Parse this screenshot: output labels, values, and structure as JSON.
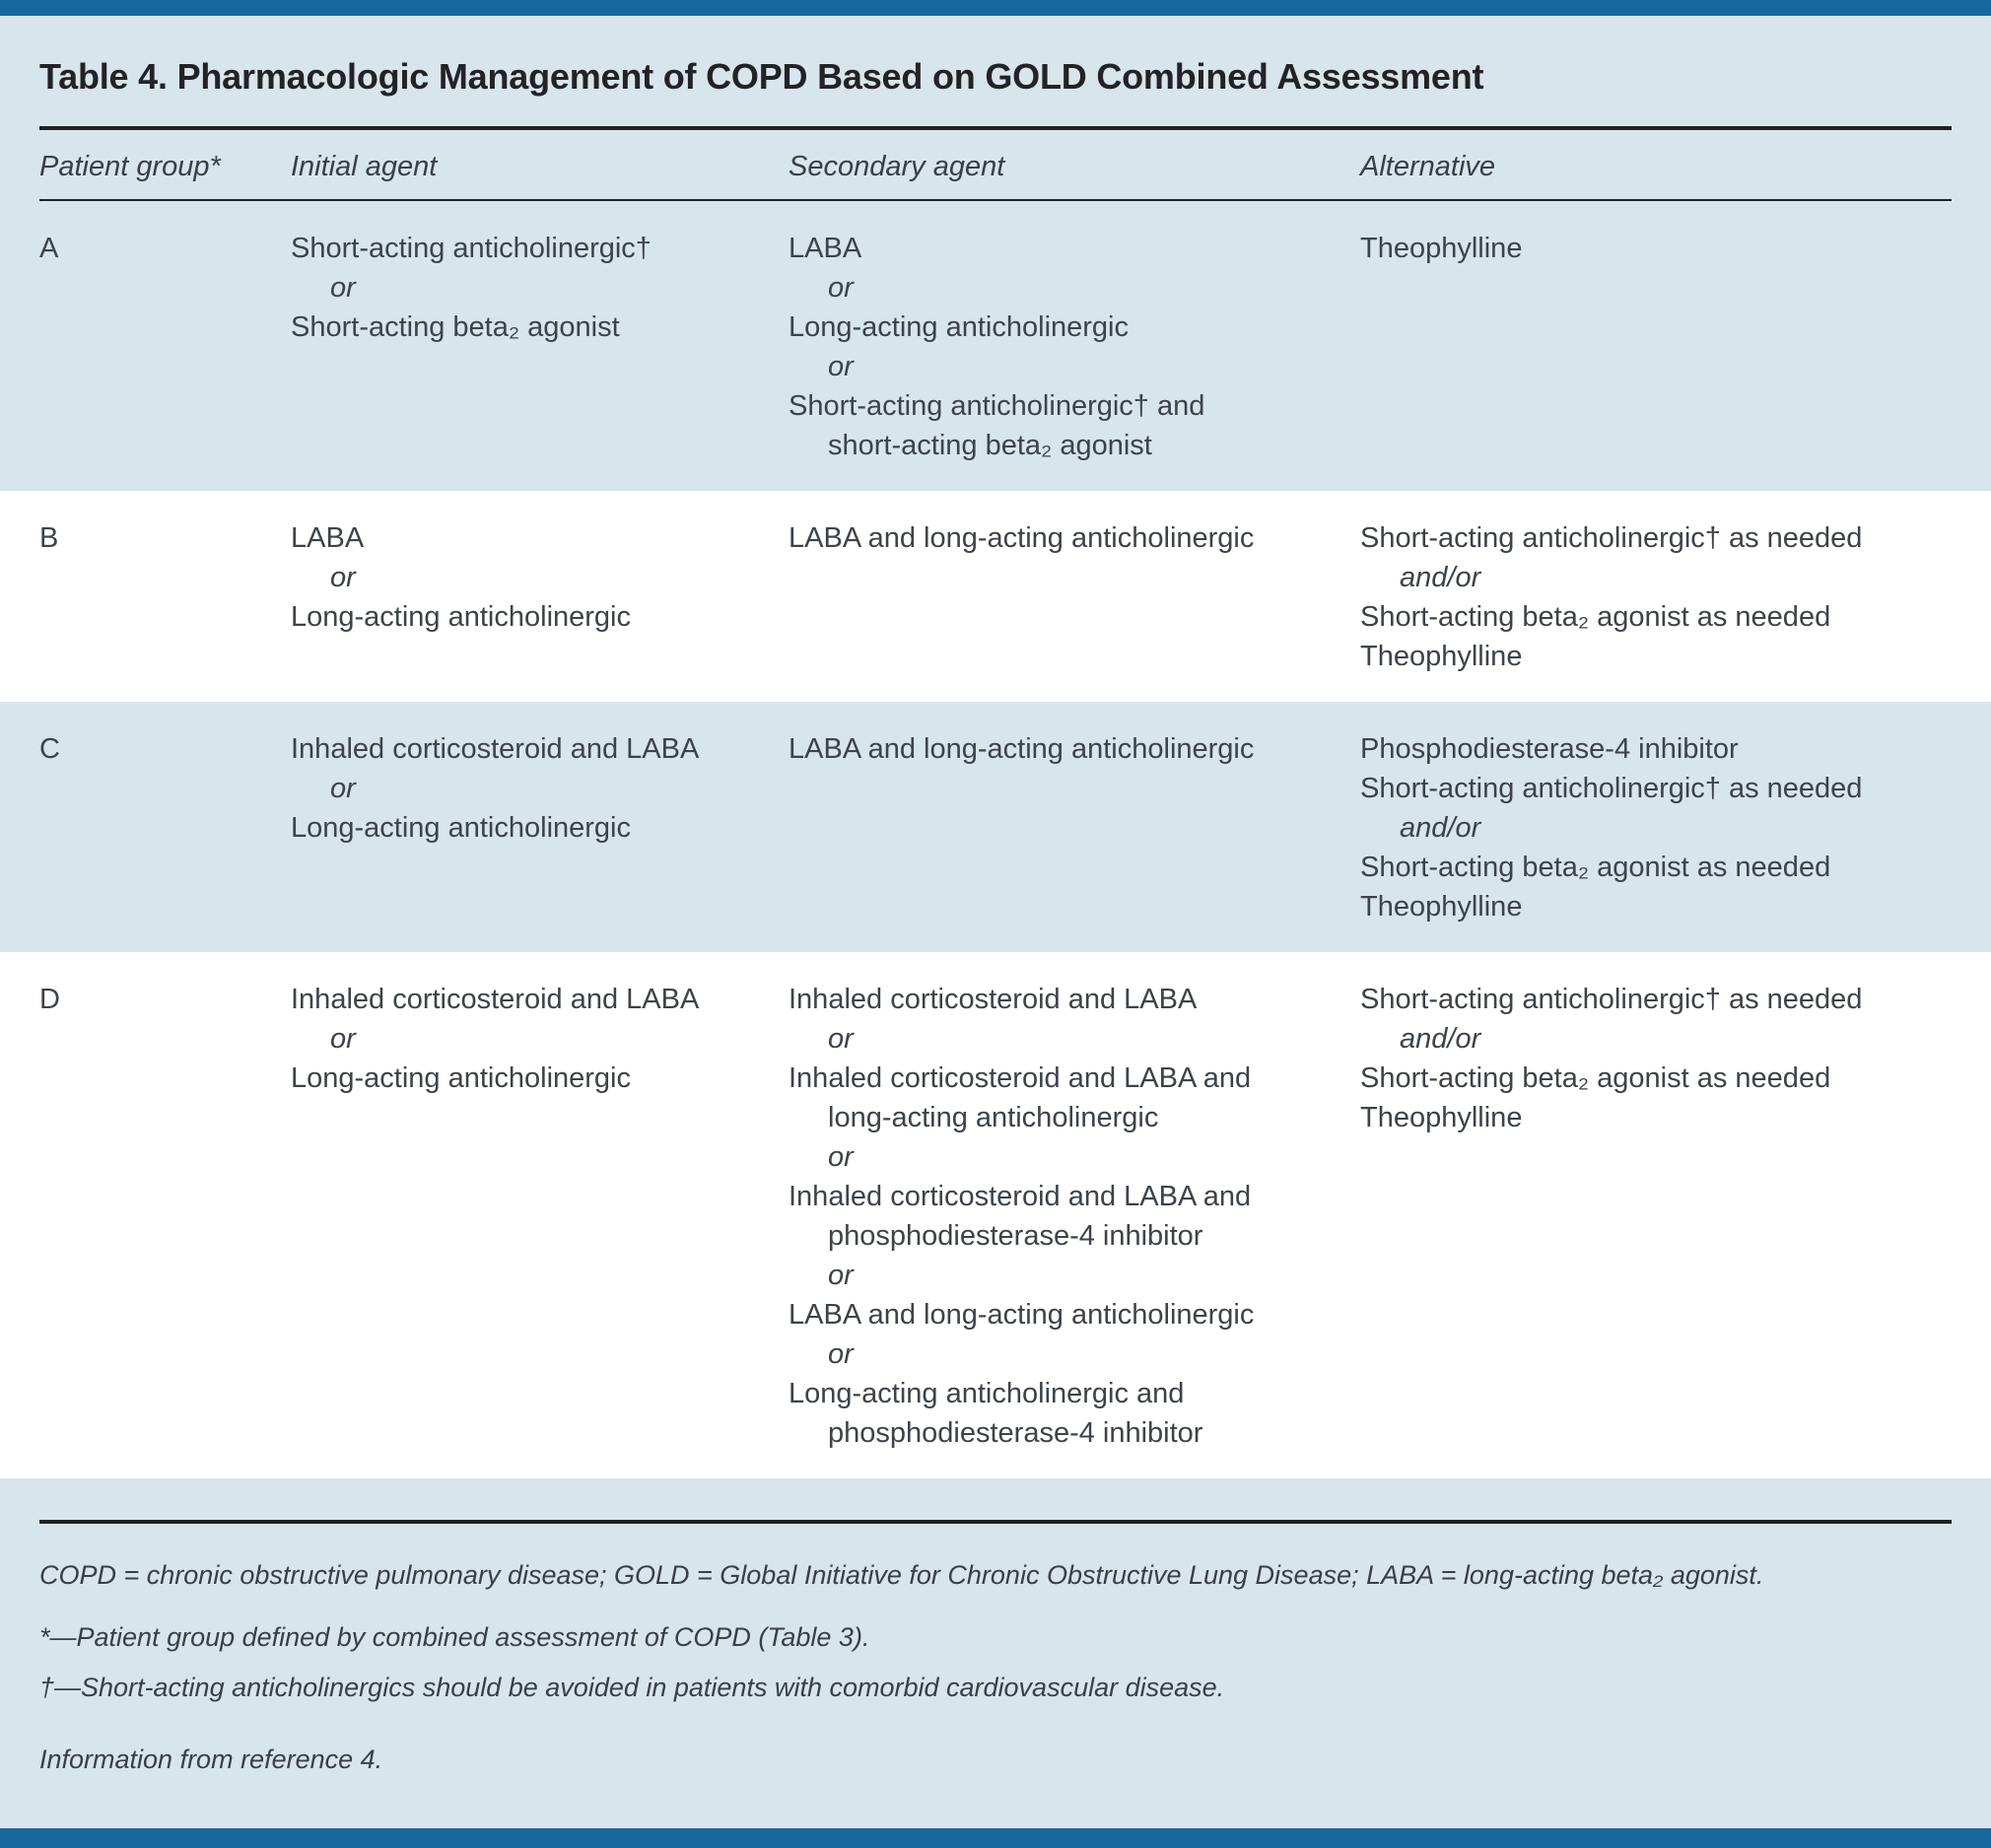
{
  "title": "Table 4. Pharmacologic Management of COPD Based on GOLD Combined Assessment",
  "columns": [
    "Patient group*",
    "Initial agent",
    "Secondary agent",
    "Alternative"
  ],
  "rows": [
    {
      "group": "A",
      "initial": [
        {
          "s": "p",
          "t": "Short-acting anticholinergic†"
        },
        {
          "s": "or",
          "t": "or"
        },
        {
          "s": "p",
          "t": "Short-acting beta₂ agonist"
        }
      ],
      "secondary": [
        {
          "s": "p",
          "t": "LABA"
        },
        {
          "s": "or",
          "t": "or"
        },
        {
          "s": "p",
          "t": "Long-acting anticholinergic"
        },
        {
          "s": "or",
          "t": "or"
        },
        {
          "s": "p",
          "t": "Short-acting anticholinergic† and"
        },
        {
          "s": "ind",
          "t": "short-acting beta₂ agonist"
        }
      ],
      "alternative": [
        {
          "s": "p",
          "t": "Theophylline"
        }
      ]
    },
    {
      "group": "B",
      "initial": [
        {
          "s": "p",
          "t": "LABA"
        },
        {
          "s": "or",
          "t": "or"
        },
        {
          "s": "p",
          "t": "Long-acting anticholinergic"
        }
      ],
      "secondary": [
        {
          "s": "p",
          "t": "LABA and long-acting anticholinergic"
        }
      ],
      "alternative": [
        {
          "s": "p",
          "t": "Short-acting anticholinergic† as needed"
        },
        {
          "s": "or",
          "t": "and/or"
        },
        {
          "s": "p",
          "t": "Short-acting beta₂ agonist as needed"
        },
        {
          "s": "p",
          "t": "Theophylline"
        }
      ]
    },
    {
      "group": "C",
      "initial": [
        {
          "s": "p",
          "t": "Inhaled corticosteroid and LABA"
        },
        {
          "s": "or",
          "t": "or"
        },
        {
          "s": "p",
          "t": "Long-acting anticholinergic"
        }
      ],
      "secondary": [
        {
          "s": "p",
          "t": "LABA and long-acting anticholinergic"
        }
      ],
      "alternative": [
        {
          "s": "p",
          "t": "Phosphodiesterase-4 inhibitor"
        },
        {
          "s": "p",
          "t": "Short-acting anticholinergic† as needed"
        },
        {
          "s": "or",
          "t": "and/or"
        },
        {
          "s": "p",
          "t": "Short-acting beta₂ agonist as needed"
        },
        {
          "s": "p",
          "t": "Theophylline"
        }
      ]
    },
    {
      "group": "D",
      "initial": [
        {
          "s": "p",
          "t": "Inhaled corticosteroid and LABA"
        },
        {
          "s": "or",
          "t": "or"
        },
        {
          "s": "p",
          "t": "Long-acting anticholinergic"
        }
      ],
      "secondary": [
        {
          "s": "p",
          "t": "Inhaled corticosteroid and LABA"
        },
        {
          "s": "or",
          "t": "or"
        },
        {
          "s": "p",
          "t": "Inhaled corticosteroid and LABA and"
        },
        {
          "s": "ind",
          "t": "long-acting anticholinergic"
        },
        {
          "s": "or",
          "t": "or"
        },
        {
          "s": "p",
          "t": "Inhaled corticosteroid and LABA and"
        },
        {
          "s": "ind",
          "t": "phosphodiesterase-4 inhibitor"
        },
        {
          "s": "or",
          "t": "or"
        },
        {
          "s": "p",
          "t": "LABA and long-acting anticholinergic"
        },
        {
          "s": "or",
          "t": "or"
        },
        {
          "s": "p",
          "t": "Long-acting anticholinergic and"
        },
        {
          "s": "ind",
          "t": "phosphodiesterase-4 inhibitor"
        }
      ],
      "alternative": [
        {
          "s": "p",
          "t": "Short-acting anticholinergic† as needed"
        },
        {
          "s": "or",
          "t": "and/or"
        },
        {
          "s": "p",
          "t": "Short-acting beta₂ agonist as needed"
        },
        {
          "s": "p",
          "t": "Theophylline"
        }
      ]
    }
  ],
  "footnotes": [
    "COPD = chronic obstructive pulmonary disease; GOLD = Global Initiative for Chronic Obstructive Lung Disease; LABA = long-acting beta₂ agonist.",
    "*—Patient group defined by combined assessment of COPD (Table 3).",
    "†—Short-acting anticholinergics should be avoided in patients with comorbid cardiovascular disease.",
    "Information from reference 4."
  ],
  "colors": {
    "accent": "#17689c",
    "stripe": "#d8e5ec",
    "rule": "#1f2125",
    "text": "#3d4349"
  }
}
